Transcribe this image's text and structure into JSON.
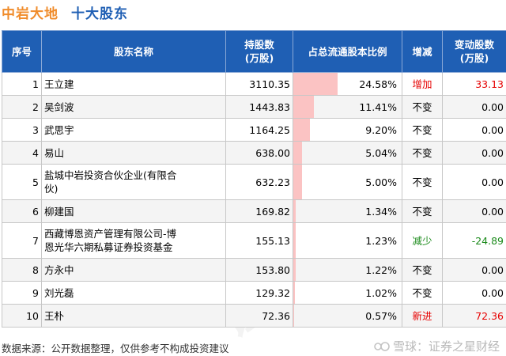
{
  "header": {
    "brand": "中岩大地",
    "subtitle": "十大股东"
  },
  "table": {
    "columns": [
      "序号",
      "股东名称",
      [
        "持股数",
        "(万股)"
      ],
      "占总流通股本比例",
      "增减",
      [
        "变动股数",
        "(万股)"
      ]
    ],
    "rows": [
      {
        "rank": "1",
        "name": [
          "王立建"
        ],
        "shares": "3110.35",
        "ratio": "24.58%",
        "ratio_value": 24.58,
        "change": "增加",
        "change_type": "up",
        "delta": "33.13"
      },
      {
        "rank": "2",
        "name": [
          "吴剑波"
        ],
        "shares": "1443.83",
        "ratio": "11.41%",
        "ratio_value": 11.41,
        "change": "不变",
        "change_type": "same",
        "delta": "0.00"
      },
      {
        "rank": "3",
        "name": [
          "武思宇"
        ],
        "shares": "1164.25",
        "ratio": "9.20%",
        "ratio_value": 9.2,
        "change": "不变",
        "change_type": "same",
        "delta": "0.00"
      },
      {
        "rank": "4",
        "name": [
          "易山"
        ],
        "shares": "638.00",
        "ratio": "5.04%",
        "ratio_value": 5.04,
        "change": "不变",
        "change_type": "same",
        "delta": "0.00"
      },
      {
        "rank": "5",
        "name": [
          "盐城中岩投资合伙企业(有限合",
          "伙)"
        ],
        "shares": "632.23",
        "ratio": "5.00%",
        "ratio_value": 5.0,
        "change": "不变",
        "change_type": "same",
        "delta": "0.00"
      },
      {
        "rank": "6",
        "name": [
          "柳建国"
        ],
        "shares": "169.82",
        "ratio": "1.34%",
        "ratio_value": 1.34,
        "change": "不变",
        "change_type": "same",
        "delta": "0.00"
      },
      {
        "rank": "7",
        "name": [
          "西藏博恩资产管理有限公司-博",
          "恩光华六期私募证券投资基金"
        ],
        "shares": "155.13",
        "ratio": "1.23%",
        "ratio_value": 1.23,
        "change": "减少",
        "change_type": "down",
        "delta": "-24.89"
      },
      {
        "rank": "8",
        "name": [
          "方永中"
        ],
        "shares": "153.80",
        "ratio": "1.22%",
        "ratio_value": 1.22,
        "change": "不变",
        "change_type": "same",
        "delta": "0.00"
      },
      {
        "rank": "9",
        "name": [
          "刘光磊"
        ],
        "shares": "129.32",
        "ratio": "1.02%",
        "ratio_value": 1.02,
        "change": "不变",
        "change_type": "same",
        "delta": "0.00"
      },
      {
        "rank": "10",
        "name": [
          "王朴"
        ],
        "shares": "72.36",
        "ratio": "0.57%",
        "ratio_value": 0.57,
        "change": "新进",
        "change_type": "new",
        "delta": "72.36"
      }
    ]
  },
  "footer": {
    "source_note": "数据来源：公开数据整理，仅供参考不构成投资建议",
    "logo_text": "雪球：证券之星财经"
  },
  "watermark": {
    "text": "证券之星"
  },
  "colors": {
    "brand": "#f08c2b",
    "subtitle": "#1f5fb4",
    "header_bg": "#1f5fb4",
    "ratio_bar": "#fbc3c3",
    "up": "#e60000",
    "new": "#e60000",
    "down": "#1a8a1a"
  }
}
